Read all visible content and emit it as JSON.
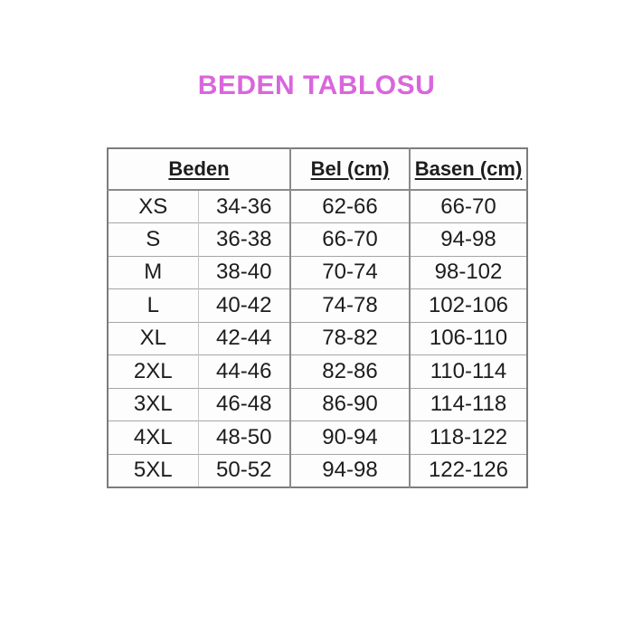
{
  "page": {
    "background": "#ffffff",
    "title": "BEDEN TABLOSU",
    "title_color": "#d966dd"
  },
  "table": {
    "headers": [
      {
        "label": "Beden",
        "colspan": 2
      },
      {
        "label": "Bel (cm)",
        "colspan": 1
      },
      {
        "label": "Basen (cm)",
        "colspan": 1
      }
    ],
    "border_color": "#7c7c7c",
    "grid_color": "#8a8a8a",
    "row_line_color": "#a5a5a5",
    "text_color": "#1d1d1d",
    "rows": [
      {
        "size": "XS",
        "beden": "34-36",
        "bel": "62-66",
        "basen": "66-70"
      },
      {
        "size": "S",
        "beden": "36-38",
        "bel": "66-70",
        "basen": "94-98"
      },
      {
        "size": "M",
        "beden": "38-40",
        "bel": "70-74",
        "basen": "98-102"
      },
      {
        "size": "L",
        "beden": "40-42",
        "bel": "74-78",
        "basen": "102-106"
      },
      {
        "size": "XL",
        "beden": "42-44",
        "bel": "78-82",
        "basen": "106-110"
      },
      {
        "size": "2XL",
        "beden": "44-46",
        "bel": "82-86",
        "basen": "110-114"
      },
      {
        "size": "3XL",
        "beden": "46-48",
        "bel": "86-90",
        "basen": "114-118"
      },
      {
        "size": "4XL",
        "beden": "48-50",
        "bel": "90-94",
        "basen": "118-122"
      },
      {
        "size": "5XL",
        "beden": "50-52",
        "bel": "94-98",
        "basen": "122-126"
      }
    ]
  }
}
